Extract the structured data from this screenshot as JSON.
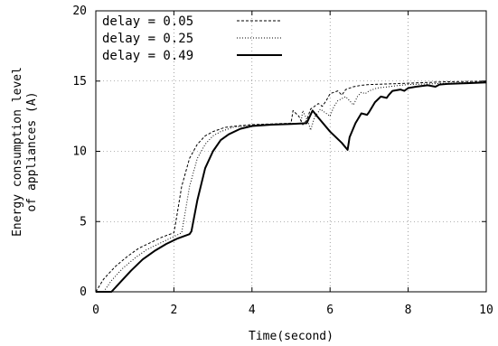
{
  "chart_data": {
    "type": "line",
    "title": "",
    "xlabel": "Time(second)",
    "ylabel_lines": [
      "Energy consumption level",
      "of appliances (A)"
    ],
    "xlim": [
      0,
      10
    ],
    "ylim": [
      0,
      20
    ],
    "xticks": [
      0,
      2,
      4,
      6,
      8,
      10
    ],
    "yticks": [
      0,
      5,
      10,
      15,
      20
    ],
    "grid": true,
    "legend_position": "top-left",
    "series": [
      {
        "name": "delay = 0.05",
        "style": "dashed",
        "points": [
          [
            0.0,
            0.0
          ],
          [
            0.2,
            0.9
          ],
          [
            0.5,
            1.8
          ],
          [
            0.8,
            2.5
          ],
          [
            1.1,
            3.1
          ],
          [
            1.4,
            3.5
          ],
          [
            1.7,
            3.9
          ],
          [
            2.0,
            4.2
          ],
          [
            2.05,
            5.0
          ],
          [
            2.2,
            7.5
          ],
          [
            2.4,
            9.5
          ],
          [
            2.6,
            10.5
          ],
          [
            2.8,
            11.1
          ],
          [
            3.0,
            11.4
          ],
          [
            3.3,
            11.7
          ],
          [
            3.6,
            11.8
          ],
          [
            4.0,
            11.9
          ],
          [
            4.5,
            11.95
          ],
          [
            5.0,
            12.0
          ],
          [
            5.05,
            12.9
          ],
          [
            5.2,
            12.5
          ],
          [
            5.3,
            11.9
          ],
          [
            5.4,
            12.2
          ],
          [
            5.5,
            13.0
          ],
          [
            5.7,
            13.4
          ],
          [
            5.8,
            13.2
          ],
          [
            5.9,
            13.6
          ],
          [
            6.0,
            14.1
          ],
          [
            6.2,
            14.3
          ],
          [
            6.3,
            14.0
          ],
          [
            6.4,
            14.4
          ],
          [
            6.6,
            14.6
          ],
          [
            6.8,
            14.7
          ],
          [
            7.0,
            14.75
          ],
          [
            7.5,
            14.8
          ],
          [
            8.0,
            14.85
          ],
          [
            8.5,
            14.9
          ],
          [
            9.0,
            14.95
          ],
          [
            10.0,
            15.0
          ]
        ]
      },
      {
        "name": "delay = 0.25",
        "style": "dotted",
        "points": [
          [
            0.2,
            0.0
          ],
          [
            0.4,
            0.8
          ],
          [
            0.7,
            1.7
          ],
          [
            1.0,
            2.4
          ],
          [
            1.3,
            3.0
          ],
          [
            1.6,
            3.4
          ],
          [
            1.9,
            3.8
          ],
          [
            2.2,
            4.2
          ],
          [
            2.25,
            5.0
          ],
          [
            2.4,
            7.5
          ],
          [
            2.6,
            9.5
          ],
          [
            2.8,
            10.5
          ],
          [
            3.0,
            11.1
          ],
          [
            3.2,
            11.4
          ],
          [
            3.5,
            11.7
          ],
          [
            3.8,
            11.8
          ],
          [
            4.2,
            11.9
          ],
          [
            4.7,
            11.95
          ],
          [
            5.25,
            12.0
          ],
          [
            5.3,
            12.9
          ],
          [
            5.45,
            12.0
          ],
          [
            5.5,
            11.5
          ],
          [
            5.6,
            12.4
          ],
          [
            5.75,
            13.0
          ],
          [
            5.9,
            12.7
          ],
          [
            6.0,
            12.5
          ],
          [
            6.1,
            13.2
          ],
          [
            6.2,
            13.6
          ],
          [
            6.4,
            13.9
          ],
          [
            6.5,
            13.6
          ],
          [
            6.6,
            13.3
          ],
          [
            6.7,
            13.9
          ],
          [
            6.8,
            14.2
          ],
          [
            6.9,
            14.1
          ],
          [
            7.0,
            14.3
          ],
          [
            7.2,
            14.5
          ],
          [
            7.5,
            14.6
          ],
          [
            7.8,
            14.7
          ],
          [
            8.0,
            14.75
          ],
          [
            8.5,
            14.8
          ],
          [
            9.0,
            14.85
          ],
          [
            9.5,
            14.9
          ],
          [
            10.0,
            14.95
          ]
        ]
      },
      {
        "name": "delay = 0.49",
        "style": "solid",
        "points": [
          [
            0.0,
            0.0
          ],
          [
            0.4,
            0.0
          ],
          [
            0.6,
            0.6
          ],
          [
            0.9,
            1.5
          ],
          [
            1.2,
            2.3
          ],
          [
            1.5,
            2.9
          ],
          [
            1.8,
            3.4
          ],
          [
            2.1,
            3.8
          ],
          [
            2.4,
            4.1
          ],
          [
            2.45,
            4.3
          ],
          [
            2.6,
            6.5
          ],
          [
            2.8,
            8.8
          ],
          [
            3.0,
            10.0
          ],
          [
            3.2,
            10.8
          ],
          [
            3.4,
            11.2
          ],
          [
            3.7,
            11.6
          ],
          [
            4.0,
            11.8
          ],
          [
            4.5,
            11.9
          ],
          [
            5.0,
            11.95
          ],
          [
            5.4,
            12.0
          ],
          [
            5.55,
            12.9
          ],
          [
            5.7,
            12.4
          ],
          [
            6.0,
            11.4
          ],
          [
            6.3,
            10.6
          ],
          [
            6.45,
            10.1
          ],
          [
            6.5,
            11.0
          ],
          [
            6.65,
            12.0
          ],
          [
            6.8,
            12.7
          ],
          [
            6.95,
            12.6
          ],
          [
            7.0,
            12.8
          ],
          [
            7.15,
            13.5
          ],
          [
            7.3,
            13.9
          ],
          [
            7.45,
            13.8
          ],
          [
            7.5,
            14.0
          ],
          [
            7.6,
            14.3
          ],
          [
            7.8,
            14.4
          ],
          [
            7.9,
            14.3
          ],
          [
            8.0,
            14.5
          ],
          [
            8.2,
            14.6
          ],
          [
            8.5,
            14.7
          ],
          [
            8.7,
            14.6
          ],
          [
            8.8,
            14.75
          ],
          [
            9.0,
            14.8
          ],
          [
            9.5,
            14.85
          ],
          [
            10.0,
            14.9
          ]
        ]
      }
    ]
  }
}
